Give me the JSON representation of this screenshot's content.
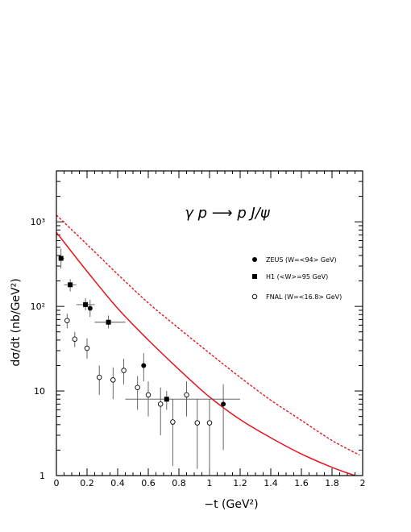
{
  "chart_data": {
    "type": "scatter",
    "reaction": "γ p ⟶ p J/ψ",
    "xlabel": "−t (GeV²)",
    "ylabel": "dσ/dt (nb/GeV²)",
    "x_scale": "linear",
    "y_scale": "log",
    "xlim": [
      0,
      2
    ],
    "ylim": [
      1,
      4000
    ],
    "x_ticks": [
      "0",
      "0.2",
      "0.4",
      "0.6",
      "0.8",
      "1",
      "1.2",
      "1.4",
      "1.6",
      "1.8",
      "2"
    ],
    "y_ticks": [
      {
        "value": 1,
        "label": "1"
      },
      {
        "value": 10,
        "label": "10"
      },
      {
        "value": 100,
        "label": "10²"
      },
      {
        "value": 1000,
        "label": "10³"
      }
    ],
    "legend_position": "right",
    "series": [
      {
        "name": "ZEUS (W=<94> GeV)",
        "marker": "filled-circle",
        "points": [
          {
            "x": 0.22,
            "y": 95,
            "ylo": 75,
            "yhi": 120
          },
          {
            "x": 0.57,
            "y": 20,
            "ylo": 13,
            "yhi": 28
          },
          {
            "x": 1.09,
            "y": 7,
            "ylo": 2,
            "yhi": 12
          }
        ]
      },
      {
        "name": "H1 (<W>=95 GeV)",
        "marker": "filled-square",
        "points": [
          {
            "x": 0.03,
            "y": 370,
            "ylo": 280,
            "yhi": 480,
            "xlo": 0.02,
            "xhi": 0.05
          },
          {
            "x": 0.09,
            "y": 180,
            "ylo": 150,
            "yhi": 210,
            "xlo": 0.05,
            "xhi": 0.13
          },
          {
            "x": 0.19,
            "y": 105,
            "ylo": 90,
            "yhi": 125,
            "xlo": 0.13,
            "xhi": 0.25
          },
          {
            "x": 0.34,
            "y": 65,
            "ylo": 55,
            "yhi": 78,
            "xlo": 0.25,
            "xhi": 0.45
          },
          {
            "x": 0.72,
            "y": 8,
            "ylo": 6,
            "yhi": 10,
            "xlo": 0.45,
            "xhi": 1.2
          }
        ]
      },
      {
        "name": "FNAL (W=<16.8> GeV)",
        "marker": "open-circle",
        "points": [
          {
            "x": 0.07,
            "y": 68,
            "ylo": 55,
            "yhi": 82
          },
          {
            "x": 0.12,
            "y": 41,
            "ylo": 33,
            "yhi": 50
          },
          {
            "x": 0.2,
            "y": 32,
            "ylo": 24,
            "yhi": 42
          },
          {
            "x": 0.28,
            "y": 14.5,
            "ylo": 9,
            "yhi": 20
          },
          {
            "x": 0.37,
            "y": 13.5,
            "ylo": 8,
            "yhi": 19
          },
          {
            "x": 0.44,
            "y": 17.5,
            "ylo": 12,
            "yhi": 24
          },
          {
            "x": 0.53,
            "y": 11,
            "ylo": 6,
            "yhi": 15
          },
          {
            "x": 0.6,
            "y": 9,
            "ylo": 5,
            "yhi": 13
          },
          {
            "x": 0.68,
            "y": 7,
            "ylo": 3,
            "yhi": 11
          },
          {
            "x": 0.76,
            "y": 4.3,
            "ylo": 1.3,
            "yhi": 8
          },
          {
            "x": 0.85,
            "y": 9,
            "ylo": 5,
            "yhi": 13
          },
          {
            "x": 0.92,
            "y": 4.2,
            "ylo": 1.2,
            "yhi": 8
          },
          {
            "x": 1.0,
            "y": 4.2,
            "ylo": 1,
            "yhi": 8
          }
        ]
      }
    ],
    "curves": [
      {
        "style": "solid",
        "color": "#e8141b",
        "points": [
          [
            0,
            750
          ],
          [
            0.2,
            260
          ],
          [
            0.4,
            95
          ],
          [
            0.6,
            40
          ],
          [
            0.8,
            18
          ],
          [
            1.0,
            8.5
          ],
          [
            1.2,
            4.6
          ],
          [
            1.4,
            2.8
          ],
          [
            1.6,
            1.8
          ],
          [
            1.8,
            1.25
          ],
          [
            1.95,
            1
          ]
        ]
      },
      {
        "style": "dashed",
        "color": "#e8141b",
        "points": [
          [
            0,
            1200
          ],
          [
            0.2,
            540
          ],
          [
            0.4,
            240
          ],
          [
            0.6,
            110
          ],
          [
            0.8,
            55
          ],
          [
            1.0,
            28
          ],
          [
            1.2,
            14.5
          ],
          [
            1.4,
            7.8
          ],
          [
            1.6,
            4.5
          ],
          [
            1.8,
            2.6
          ],
          [
            1.98,
            1.75
          ]
        ]
      }
    ]
  }
}
